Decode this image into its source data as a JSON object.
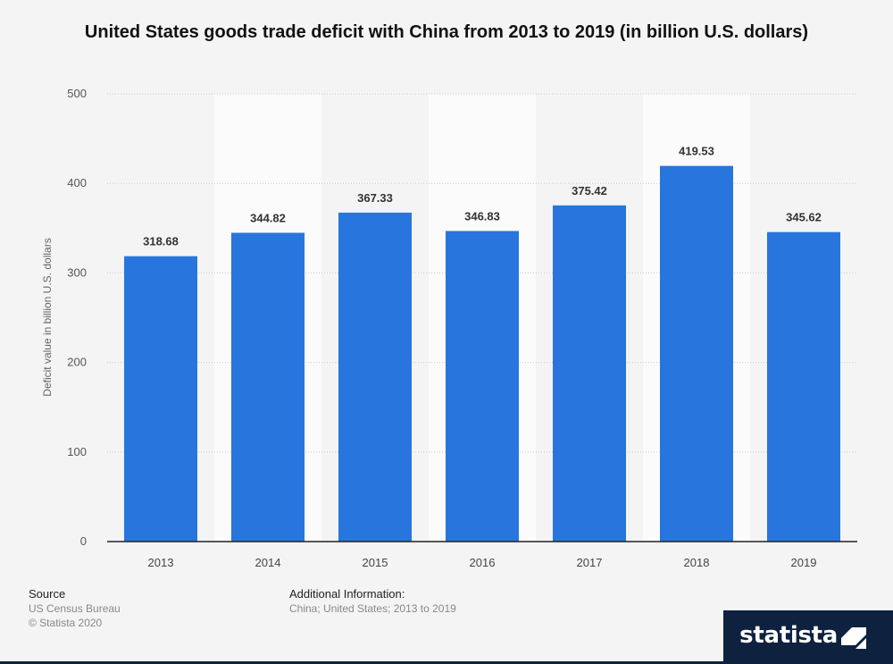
{
  "page_title": "United States goods trade deficit with China from 2013 to 2019 (in billion U.S. dollars)",
  "colors": {
    "bar": "#2876dd",
    "band": "#fbfbfb",
    "background": "#f4f4f4",
    "brand": "#0e2240"
  },
  "chart_data": {
    "type": "bar",
    "title": "United States goods trade deficit with China from 2013 to 2019 (in billion U.S. dollars)",
    "xlabel": "",
    "ylabel": "Deficit value in billion U.S. dollars",
    "categories": [
      "2013",
      "2014",
      "2015",
      "2016",
      "2017",
      "2018",
      "2019"
    ],
    "values": [
      318.68,
      344.82,
      367.33,
      346.83,
      375.42,
      419.53,
      345.62
    ],
    "data_labels": [
      "318.68",
      "344.82",
      "367.33",
      "346.83",
      "375.42",
      "419.53",
      "345.62"
    ],
    "ylim": [
      0,
      500
    ],
    "yticks": [
      0,
      100,
      200,
      300,
      400,
      500
    ],
    "grid": true,
    "alternating_bands": true
  },
  "footer": {
    "source_heading": "Source",
    "source_lines": [
      "US Census Bureau",
      "© Statista 2020"
    ],
    "additional_heading": "Additional Information:",
    "additional_text": "China; United States; 2013 to 2019"
  },
  "brand": {
    "name": "statista",
    "icon": "statista-logo-icon"
  }
}
